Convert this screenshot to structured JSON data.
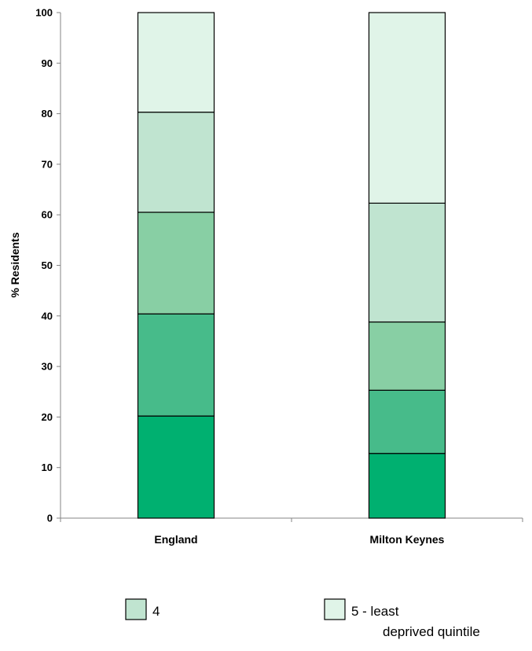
{
  "chart_data": {
    "type": "bar",
    "stacked": true,
    "categories": [
      "England",
      "Milton Keynes"
    ],
    "ylabel": "% Residents",
    "ylim": [
      0,
      100
    ],
    "yticks": [
      0,
      10,
      20,
      30,
      40,
      50,
      60,
      70,
      80,
      90,
      100
    ],
    "grid": false,
    "series": [
      {
        "values": [
          20.2,
          12.8
        ],
        "color": "#00b070"
      },
      {
        "values": [
          20.2,
          12.5
        ],
        "color": "#47bb8a"
      },
      {
        "values": [
          20.1,
          13.5
        ],
        "color": "#88cfa4"
      },
      {
        "values": [
          19.8,
          23.5
        ],
        "color": "#c0e4d0"
      },
      {
        "values": [
          19.7,
          37.7
        ],
        "color": "#e0f4e8"
      }
    ],
    "legend": {
      "placement": "bottom",
      "entries": [
        {
          "label": "4",
          "color": "#c0e4d0"
        },
        {
          "label_line1": "5 - least",
          "label_line2": "deprived quintile",
          "color": "#e0f4e8"
        }
      ]
    }
  }
}
